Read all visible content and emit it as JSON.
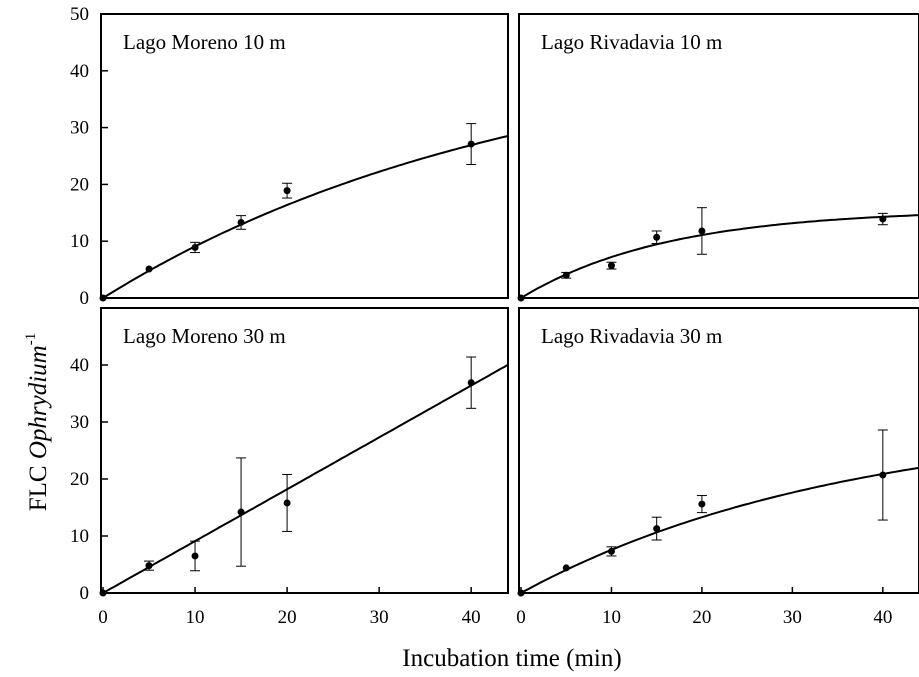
{
  "figure": {
    "ylabel_prefix": "FLC ",
    "ylabel_italic": "Ophrydium",
    "ylabel_superscript": "-1",
    "xlabel": "Incubation time (min)"
  },
  "chart_data": [
    {
      "type": "scatter",
      "title": "Lago Moreno 10 m",
      "xlim": [
        0,
        44
      ],
      "ylim": [
        0,
        50
      ],
      "xticks": [],
      "yticks": [
        0,
        10,
        20,
        30,
        40,
        50
      ],
      "points": [
        {
          "x": 5,
          "y": 5.1,
          "err": 0
        },
        {
          "x": 10,
          "y": 8.9,
          "err": 0.9
        },
        {
          "x": 15,
          "y": 13.3,
          "err": 1.2
        },
        {
          "x": 20,
          "y": 18.9,
          "err": 1.3
        },
        {
          "x": 40,
          "y": 27.1,
          "err": 3.6
        }
      ],
      "fit": {
        "model": "saturating",
        "a": 46,
        "k": 0.022
      }
    },
    {
      "type": "scatter",
      "title": "Lago Rivadavia 10 m",
      "xlim": [
        0,
        44
      ],
      "ylim": [
        0,
        50
      ],
      "xticks": [],
      "yticks": [],
      "points": [
        {
          "x": 5,
          "y": 4.0,
          "err": 0.5
        },
        {
          "x": 10,
          "y": 5.7,
          "err": 0.6
        },
        {
          "x": 15,
          "y": 10.7,
          "err": 1.1
        },
        {
          "x": 20,
          "y": 11.8,
          "err": 4.1
        },
        {
          "x": 40,
          "y": 13.9,
          "err": 1.0
        }
      ],
      "fit": {
        "model": "saturating",
        "a": 15.6,
        "k": 0.062
      }
    },
    {
      "type": "scatter",
      "title": "Lago Moreno 30 m",
      "xlim": [
        0,
        44
      ],
      "ylim": [
        0,
        50
      ],
      "xticks": [
        0,
        10,
        20,
        30,
        40
      ],
      "yticks": [
        0,
        10,
        20,
        30,
        40
      ],
      "points": [
        {
          "x": 5,
          "y": 4.8,
          "err": 0.8
        },
        {
          "x": 10,
          "y": 6.5,
          "err": 2.6
        },
        {
          "x": 15,
          "y": 14.2,
          "err": 9.5
        },
        {
          "x": 20,
          "y": 15.8,
          "err": 5.0
        },
        {
          "x": 40,
          "y": 36.9,
          "err": 4.5
        }
      ],
      "fit": {
        "model": "linear",
        "slope": 0.91
      }
    },
    {
      "type": "scatter",
      "title": "Lago Rivadavia 30 m",
      "xlim": [
        0,
        44
      ],
      "ylim": [
        0,
        50
      ],
      "xticks": [
        0,
        10,
        20,
        30,
        40
      ],
      "yticks": [],
      "points": [
        {
          "x": 5,
          "y": 4.4,
          "err": 0
        },
        {
          "x": 10,
          "y": 7.3,
          "err": 0.8
        },
        {
          "x": 15,
          "y": 11.3,
          "err": 2.0
        },
        {
          "x": 20,
          "y": 15.6,
          "err": 1.5
        },
        {
          "x": 40,
          "y": 20.7,
          "err": 7.9
        }
      ],
      "fit": {
        "model": "saturating",
        "a": 31,
        "k": 0.028
      }
    }
  ]
}
